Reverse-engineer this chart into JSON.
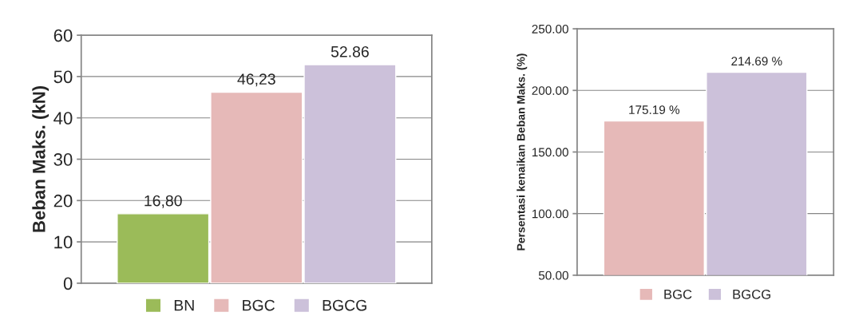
{
  "chart_data": [
    {
      "type": "bar",
      "categories": [
        null
      ],
      "ylabel": "Beban Maks. (kN)",
      "ylim": [
        0,
        60
      ],
      "yticks": [
        0,
        10,
        20,
        30,
        40,
        50,
        60
      ],
      "grid": "y",
      "legend": "bottom",
      "series": [
        {
          "name": "BN",
          "color": "#9bbb59",
          "values": [
            16.8
          ],
          "value_labels": [
            "16,80"
          ]
        },
        {
          "name": "BGC",
          "color": "#e6b9b8",
          "values": [
            46.23
          ],
          "value_labels": [
            "46,23"
          ]
        },
        {
          "name": "BGCG",
          "color": "#ccc1da",
          "values": [
            52.86
          ],
          "value_labels": [
            "52.86"
          ]
        }
      ]
    },
    {
      "type": "bar",
      "categories": [
        null
      ],
      "ylabel": "Persentasi kenaikan Beban Maks. (%)",
      "ylim": [
        50,
        250
      ],
      "yticks": [
        {
          "value": 50,
          "label": "50.00"
        },
        {
          "value": 100,
          "label": "100.00"
        },
        {
          "value": 150,
          "label": "150.00"
        },
        {
          "value": 200,
          "label": "200.00"
        },
        {
          "value": 250,
          "label": "250.00"
        }
      ],
      "grid": "y",
      "legend": "bottom",
      "series": [
        {
          "name": "BGC",
          "color": "#e6b9b8",
          "values": [
            175.19
          ],
          "value_labels": [
            "175.19 %"
          ]
        },
        {
          "name": "BGCG",
          "color": "#ccc1da",
          "values": [
            214.69
          ],
          "value_labels": [
            "214.69 %"
          ]
        }
      ]
    }
  ]
}
